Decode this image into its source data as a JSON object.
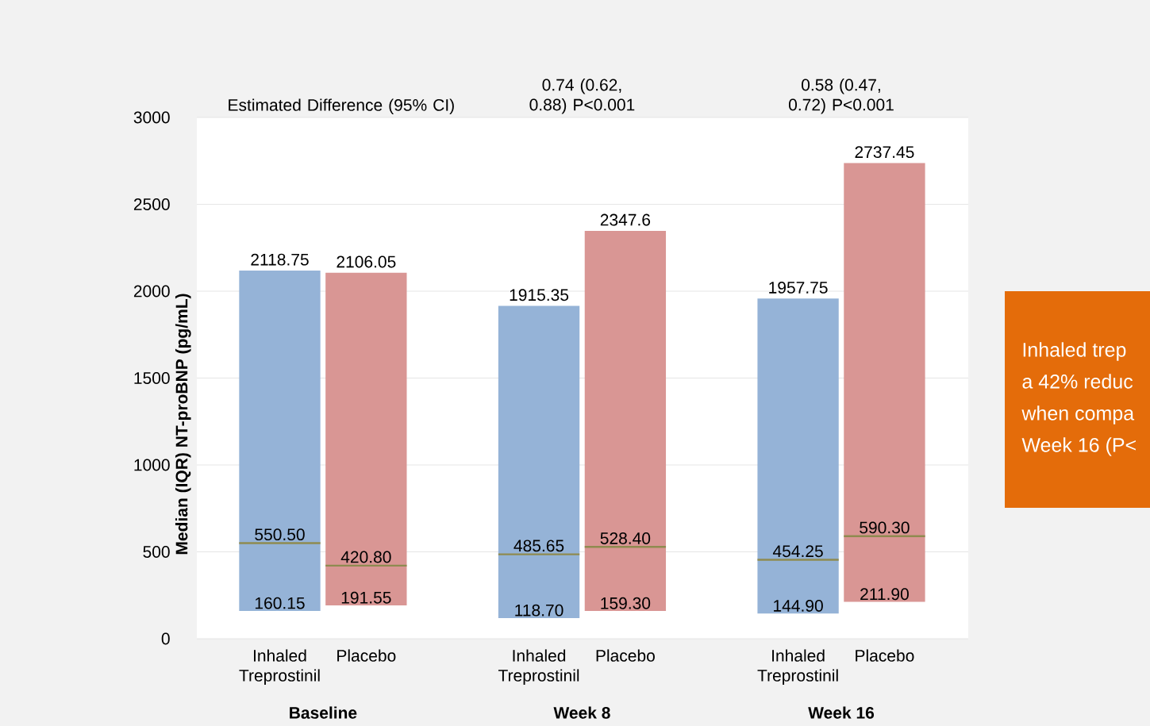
{
  "chart_data": {
    "type": "box",
    "ylabel": "Median (IQR) NT-proBNP (pg/mL)",
    "categories": [
      "Inhaled Treprostinil",
      "Placebo",
      "Inhaled Treprostinil",
      "Placebo",
      "Inhaled Treprostinil",
      "Placebo"
    ],
    "boxes": [
      {
        "low": 160.15,
        "q1": 160.15,
        "median": 550.5,
        "q3": 2118.75,
        "high": 2118.75
      },
      {
        "low": 191.55,
        "q1": 191.55,
        "median": 420.8,
        "q3": 2106.05,
        "high": 2106.05
      },
      {
        "low": 118.7,
        "q1": 118.7,
        "median": 485.65,
        "q3": 1915.35,
        "high": 1915.35
      },
      {
        "low": 159.3,
        "q1": 159.3,
        "median": 528.4,
        "q3": 2347.6,
        "high": 2347.6
      },
      {
        "low": 144.9,
        "q1": 144.9,
        "median": 454.25,
        "q3": 1957.75,
        "high": 1957.75
      },
      {
        "low": 211.9,
        "q1": 211.9,
        "median": 590.3,
        "q3": 2737.45,
        "high": 2737.45
      }
    ],
    "value_labels": [
      [
        "160.15",
        "550.50",
        "2118.75"
      ],
      [
        "191.55",
        "420.80",
        "2106.05"
      ],
      [
        "118.70",
        "485.65",
        "1915.35"
      ],
      [
        "159.30",
        "528.40",
        "2347.6"
      ],
      [
        "144.90",
        "454.25",
        "1957.75"
      ],
      [
        "211.90",
        "590.30",
        "2737.45"
      ]
    ],
    "colors": [
      "#95b3d7",
      "#d99694",
      "#95b3d7",
      "#d99694",
      "#95b3d7",
      "#d99694"
    ],
    "ylim": [
      0,
      3000
    ],
    "yticks": [
      0,
      500,
      1000,
      1500,
      2000,
      2500,
      3000
    ],
    "grid": "y",
    "annotations": [
      "Baseline",
      "Week 8",
      "Week 16",
      "Estimated Difference (95% CI)",
      "0.74 (0.62, 0.88) P<0.001",
      "0.58 (0.47, 0.72) P<0.001",
      "Inhaled trep",
      "a 42% reduc",
      "when compa",
      "Week 16 (P<"
    ]
  }
}
